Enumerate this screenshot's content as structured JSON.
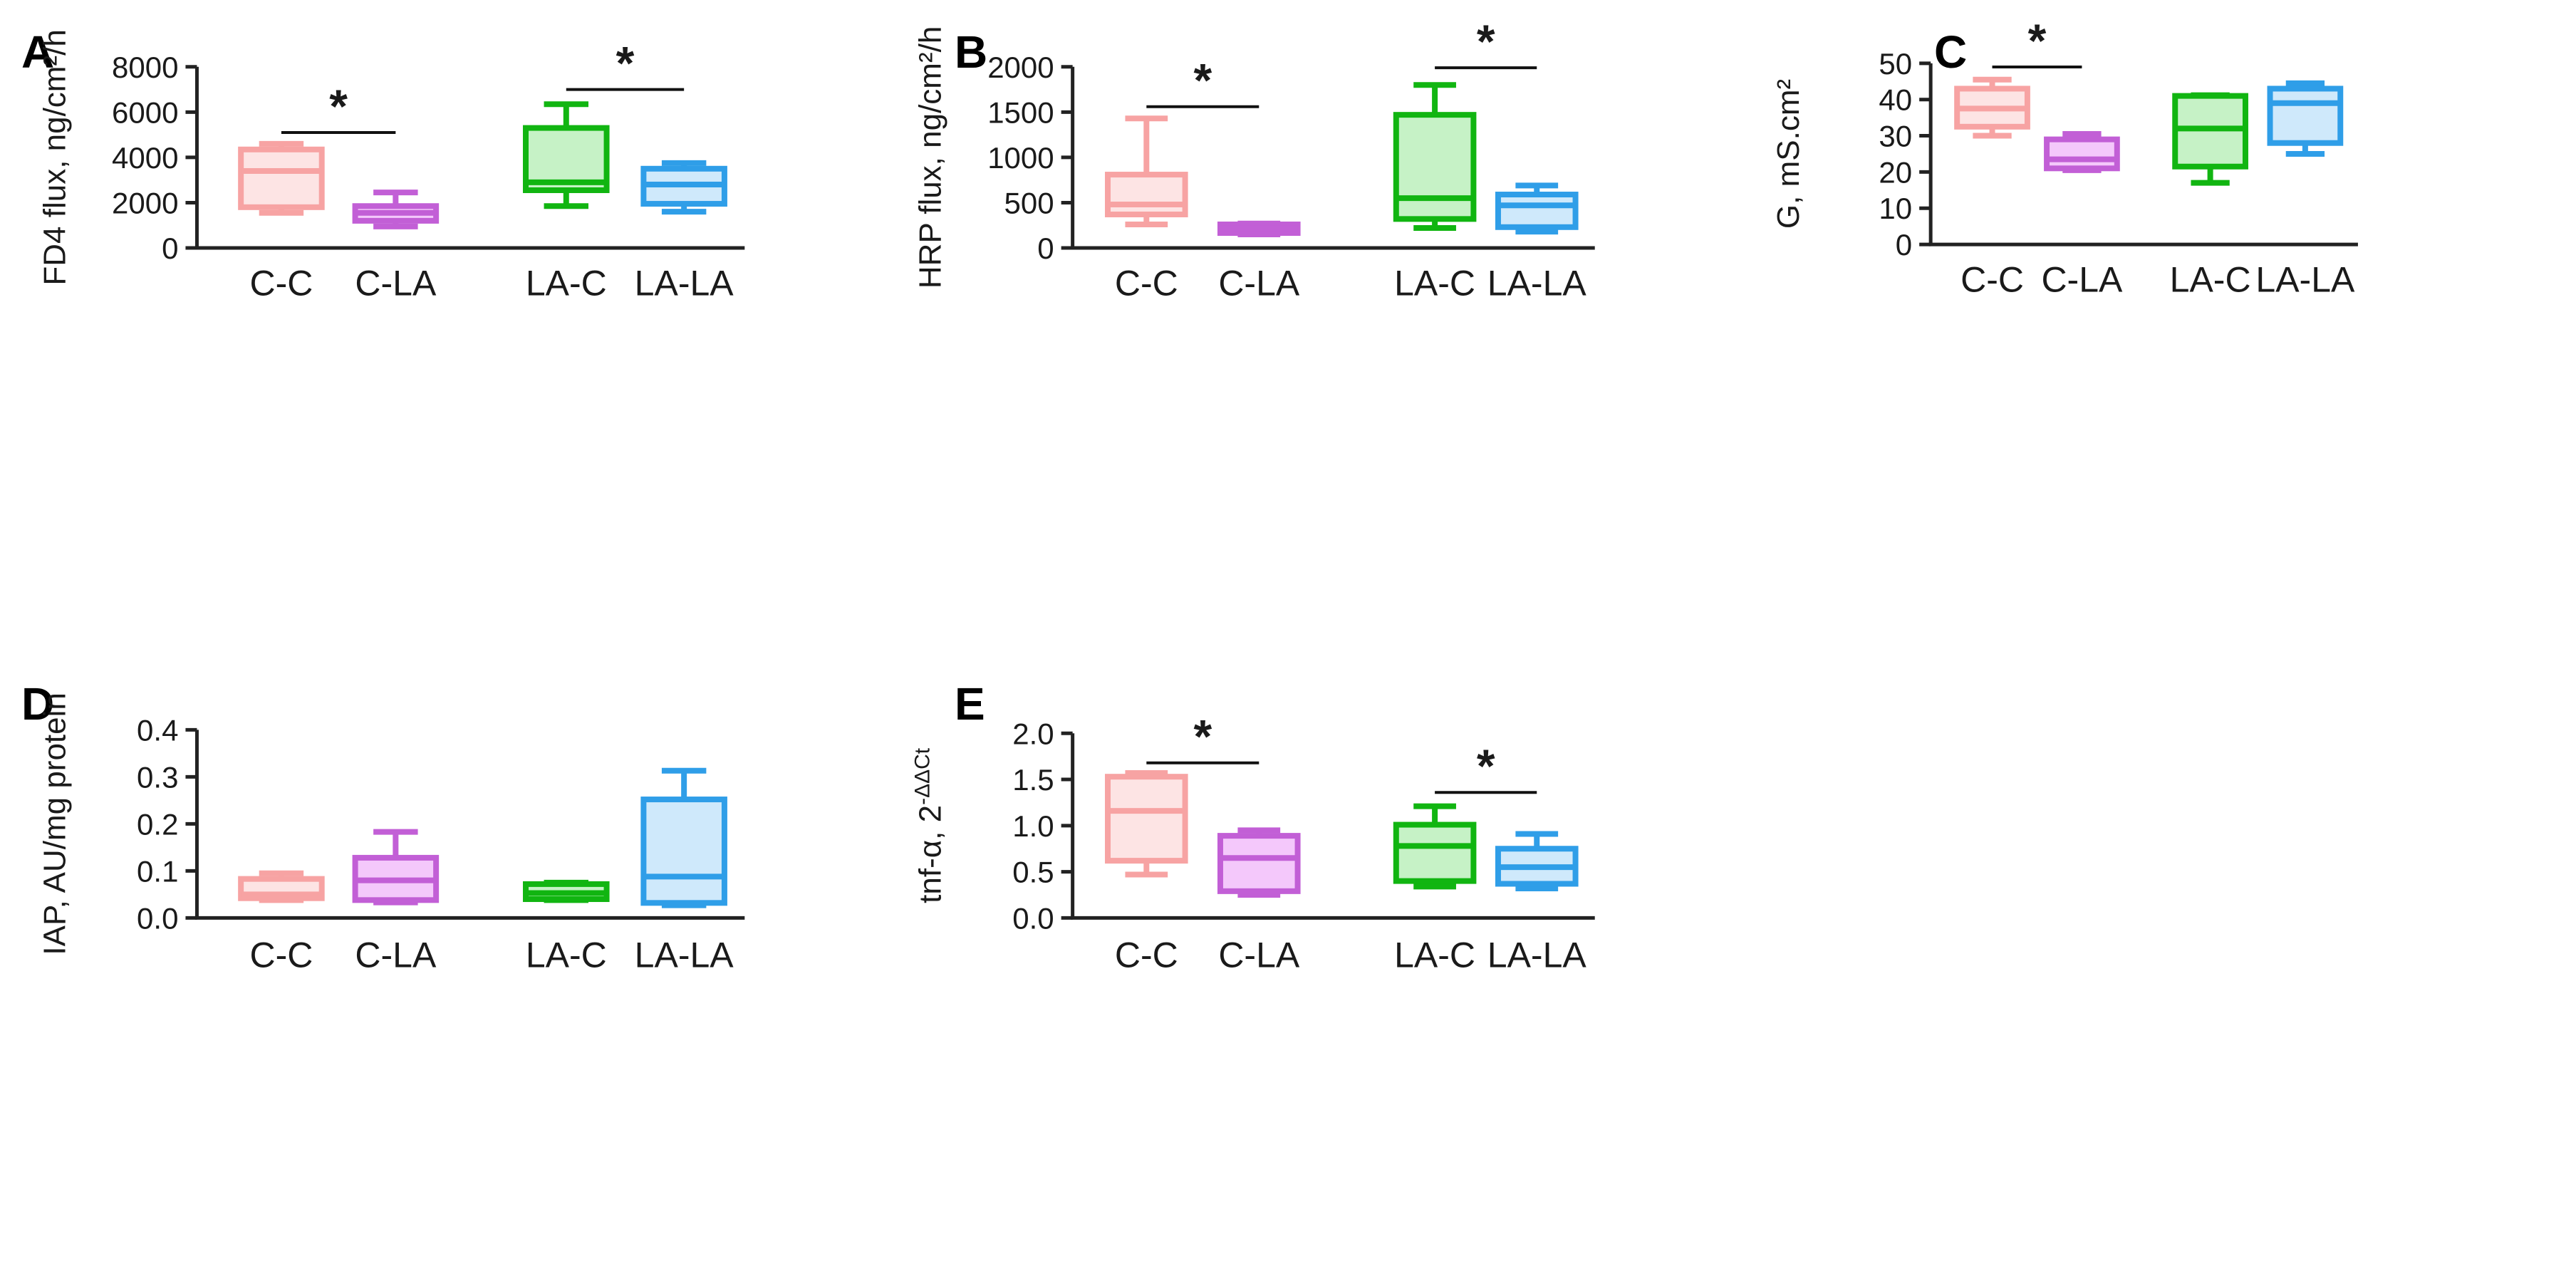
{
  "figure": {
    "background": "#ffffff"
  },
  "chart_data": [
    {
      "panel": "A",
      "type": "boxplot",
      "ylabel": "FD4 flux, ng/cm²/h",
      "ylim": [
        0,
        8000
      ],
      "yticks": [
        0,
        2000,
        4000,
        6000,
        8000
      ],
      "ytick_labels": [
        "0",
        "2000",
        "4000",
        "6000",
        "8000"
      ],
      "categories": [
        "C-C",
        "C-LA",
        "LA-C",
        "LA-LA"
      ],
      "boxes": [
        {
          "group": "C-C",
          "min": 1550,
          "q1": 1800,
          "median": 3400,
          "q3": 4350,
          "max": 4600,
          "color": "#f7a3a3",
          "fill": "#fde4e4"
        },
        {
          "group": "C-LA",
          "min": 950,
          "q1": 1200,
          "median": 1550,
          "q3": 1850,
          "max": 2450,
          "color": "#c25fd6",
          "fill": "#f4c8fb"
        },
        {
          "group": "LA-C",
          "min": 1850,
          "q1": 2550,
          "median": 2900,
          "q3": 5300,
          "max": 6350,
          "color": "#11b511",
          "fill": "#c6f2c6"
        },
        {
          "group": "LA-LA",
          "min": 1600,
          "q1": 1950,
          "median": 2800,
          "q3": 3500,
          "max": 3750,
          "color": "#2f9ee8",
          "fill": "#cfe9fb"
        }
      ],
      "significance": [
        {
          "from": "C-C",
          "to": "C-LA",
          "y": 5100,
          "label": "*"
        },
        {
          "from": "LA-C",
          "to": "LA-LA",
          "y": 7000,
          "label": "*"
        }
      ]
    },
    {
      "panel": "B",
      "type": "boxplot",
      "ylabel": "HRP flux, ng/cm²/h",
      "ylim": [
        0,
        2000
      ],
      "yticks": [
        0,
        500,
        1000,
        1500,
        2000
      ],
      "ytick_labels": [
        "0",
        "500",
        "1000",
        "1500",
        "2000"
      ],
      "categories": [
        "C-C",
        "C-LA",
        "LA-C",
        "LA-LA"
      ],
      "boxes": [
        {
          "group": "C-C",
          "min": 260,
          "q1": 370,
          "median": 480,
          "q3": 810,
          "max": 1430,
          "color": "#f7a3a3",
          "fill": "#fde4e4"
        },
        {
          "group": "C-LA",
          "min": 150,
          "q1": 165,
          "median": 215,
          "q3": 260,
          "max": 270,
          "color": "#c25fd6",
          "fill": "#f4c8fb"
        },
        {
          "group": "LA-C",
          "min": 220,
          "q1": 320,
          "median": 550,
          "q3": 1470,
          "max": 1800,
          "color": "#11b511",
          "fill": "#c6f2c6"
        },
        {
          "group": "LA-LA",
          "min": 180,
          "q1": 230,
          "median": 470,
          "q3": 590,
          "max": 690,
          "color": "#2f9ee8",
          "fill": "#cfe9fb"
        }
      ],
      "significance": [
        {
          "from": "C-C",
          "to": "C-LA",
          "y": 1560,
          "label": "*"
        },
        {
          "from": "LA-C",
          "to": "LA-LA",
          "y": 1990,
          "label": "*"
        }
      ]
    },
    {
      "panel": "C",
      "type": "boxplot",
      "ylabel": "G, mS.cm²",
      "ylim": [
        0,
        50
      ],
      "yticks": [
        0,
        10,
        20,
        30,
        40,
        50
      ],
      "ytick_labels": [
        "0",
        "10",
        "20",
        "30",
        "40",
        "50"
      ],
      "categories": [
        "C-C",
        "C-LA",
        "LA-C",
        "LA-LA"
      ],
      "boxes": [
        {
          "group": "C-C",
          "min": 30,
          "q1": 32.5,
          "median": 37.5,
          "q3": 43,
          "max": 45.5,
          "color": "#f7a3a3",
          "fill": "#fde4e4"
        },
        {
          "group": "C-LA",
          "min": 20.5,
          "q1": 21,
          "median": 23.5,
          "q3": 29,
          "max": 30.5,
          "color": "#c25fd6",
          "fill": "#f4c8fb"
        },
        {
          "group": "LA-C",
          "min": 17,
          "q1": 21.5,
          "median": 32,
          "q3": 41,
          "max": 41.2,
          "color": "#11b511",
          "fill": "#c6f2c6"
        },
        {
          "group": "LA-LA",
          "min": 25,
          "q1": 28,
          "median": 39,
          "q3": 43,
          "max": 44.5,
          "color": "#2f9ee8",
          "fill": "#cfe9fb"
        }
      ],
      "significance": [
        {
          "from": "C-C",
          "to": "C-LA",
          "y": 49,
          "label": "*"
        }
      ]
    },
    {
      "panel": "D",
      "type": "boxplot",
      "ylabel": "IAP, AU/mg protein",
      "ylim": [
        0,
        0.4
      ],
      "yticks": [
        0,
        0.1,
        0.2,
        0.3,
        0.4
      ],
      "ytick_labels": [
        "0.0",
        "0.1",
        "0.2",
        "0.3",
        "0.4"
      ],
      "categories": [
        "C-C",
        "C-LA",
        "LA-C",
        "LA-LA"
      ],
      "boxes": [
        {
          "group": "C-C",
          "min": 0.038,
          "q1": 0.042,
          "median": 0.05,
          "q3": 0.083,
          "max": 0.095,
          "color": "#f7a3a3",
          "fill": "#fde4e4"
        },
        {
          "group": "C-LA",
          "min": 0.033,
          "q1": 0.038,
          "median": 0.08,
          "q3": 0.128,
          "max": 0.183,
          "color": "#c25fd6",
          "fill": "#f4c8fb"
        },
        {
          "group": "LA-C",
          "min": 0.038,
          "q1": 0.04,
          "median": 0.053,
          "q3": 0.072,
          "max": 0.075,
          "color": "#11b511",
          "fill": "#c6f2c6"
        },
        {
          "group": "LA-LA",
          "min": 0.027,
          "q1": 0.032,
          "median": 0.088,
          "q3": 0.252,
          "max": 0.313,
          "color": "#2f9ee8",
          "fill": "#cfe9fb"
        }
      ],
      "significance": []
    },
    {
      "panel": "E",
      "type": "boxplot",
      "ylabel": "tnf-α, 2",
      "ylabel_superscript": "-ΔΔCt",
      "ylim": [
        0,
        2.0
      ],
      "yticks": [
        0,
        0.5,
        1.0,
        1.5,
        2.0
      ],
      "ytick_labels": [
        "0.0",
        "0.5",
        "1.0",
        "1.5",
        "2.0"
      ],
      "categories": [
        "C-C",
        "C-LA",
        "LA-C",
        "LA-LA"
      ],
      "boxes": [
        {
          "group": "C-C",
          "min": 0.47,
          "q1": 0.62,
          "median": 1.16,
          "q3": 1.53,
          "max": 1.57,
          "color": "#f7a3a3",
          "fill": "#fde4e4"
        },
        {
          "group": "C-LA",
          "min": 0.25,
          "q1": 0.29,
          "median": 0.65,
          "q3": 0.89,
          "max": 0.95,
          "color": "#c25fd6",
          "fill": "#f4c8fb"
        },
        {
          "group": "LA-C",
          "min": 0.34,
          "q1": 0.4,
          "median": 0.78,
          "q3": 1.01,
          "max": 1.21,
          "color": "#11b511",
          "fill": "#c6f2c6"
        },
        {
          "group": "LA-LA",
          "min": 0.32,
          "q1": 0.37,
          "median": 0.55,
          "q3": 0.75,
          "max": 0.91,
          "color": "#2f9ee8",
          "fill": "#cfe9fb"
        }
      ],
      "significance": [
        {
          "from": "C-C",
          "to": "C-LA",
          "y": 1.68,
          "label": "*"
        },
        {
          "from": "LA-C",
          "to": "LA-LA",
          "y": 1.36,
          "label": "*"
        }
      ]
    }
  ]
}
